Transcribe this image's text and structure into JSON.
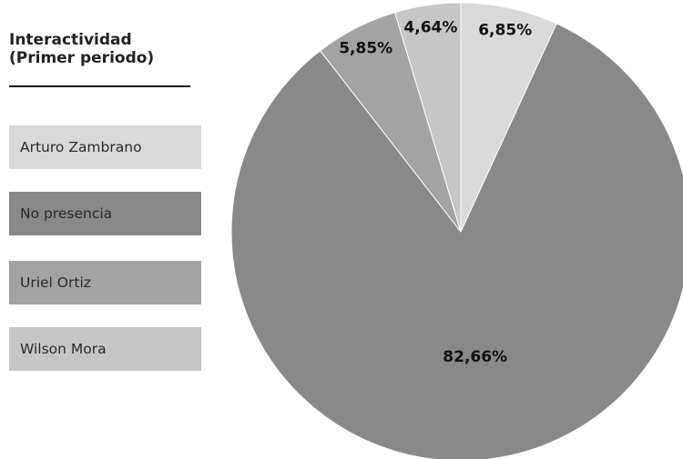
{
  "chart_data": {
    "type": "pie",
    "title_lines": [
      "Interactividad",
      "(Primer periodo)"
    ],
    "slices": [
      {
        "label": "Arturo Zambrano",
        "value": 6.85,
        "display": "6,85%",
        "color": "#d9d9d9"
      },
      {
        "label": "No presencia",
        "value": 82.66,
        "display": "82,66%",
        "color": "#898989"
      },
      {
        "label": "Uriel Ortiz",
        "value": 5.85,
        "display": "5,85%",
        "color": "#a3a3a3"
      },
      {
        "label": "Wilson Mora",
        "value": 4.64,
        "display": "4,64%",
        "color": "#c6c6c6"
      }
    ],
    "legend_placement": "left",
    "start_angle": "12 o'clock",
    "direction": "clockwise"
  }
}
